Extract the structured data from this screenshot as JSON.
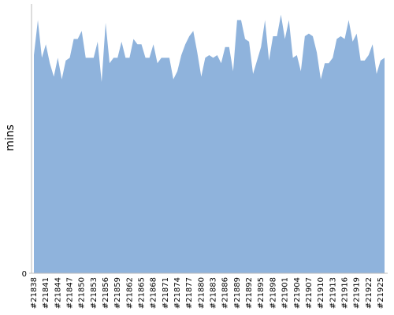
{
  "chart_data": {
    "type": "area",
    "y_label": "mins",
    "color": "#8fb3dc",
    "ylim": [
      0,
      100
    ],
    "yticks": [
      0
    ],
    "categories": [
      "#21838",
      null,
      null,
      "#21841",
      null,
      null,
      "#21844",
      null,
      null,
      "#21847",
      null,
      null,
      "#21850",
      null,
      null,
      "#21853",
      null,
      null,
      "#21856",
      null,
      null,
      "#21859",
      null,
      null,
      "#21862",
      null,
      null,
      "#21865",
      null,
      null,
      "#21868",
      null,
      null,
      "#21871",
      null,
      null,
      "#21874",
      null,
      null,
      "#21877",
      null,
      null,
      "#21880",
      null,
      null,
      "#21883",
      null,
      null,
      "#21886",
      null,
      null,
      "#21889",
      null,
      null,
      "#21892",
      null,
      null,
      "#21895",
      null,
      null,
      "#21898",
      null,
      null,
      "#21901",
      null,
      null,
      "#21904",
      null,
      null,
      "#21907",
      null,
      null,
      "#21910",
      null,
      null,
      "#21913",
      null,
      null,
      "#21916",
      null,
      null,
      "#21919",
      null,
      null,
      "#21922",
      null,
      null,
      "#21925",
      null
    ],
    "values": [
      81,
      94,
      80,
      85,
      78,
      73,
      80,
      72,
      79,
      80,
      87,
      87,
      90,
      80,
      80,
      80,
      86,
      71,
      93,
      78,
      80,
      80,
      86,
      80,
      80,
      87,
      85,
      85,
      80,
      80,
      85,
      78,
      80,
      80,
      80,
      72,
      75,
      81,
      85,
      88,
      90,
      82,
      73,
      80,
      81,
      80,
      81,
      78,
      84,
      84,
      75,
      94,
      94,
      87,
      86,
      74,
      79,
      84,
      94,
      79,
      88,
      88,
      96,
      87,
      94,
      80,
      81,
      75,
      88,
      89,
      88,
      82,
      72,
      78,
      78,
      80,
      87,
      88,
      87,
      94,
      86,
      89,
      79,
      79,
      81,
      85,
      74,
      79,
      80
    ]
  }
}
